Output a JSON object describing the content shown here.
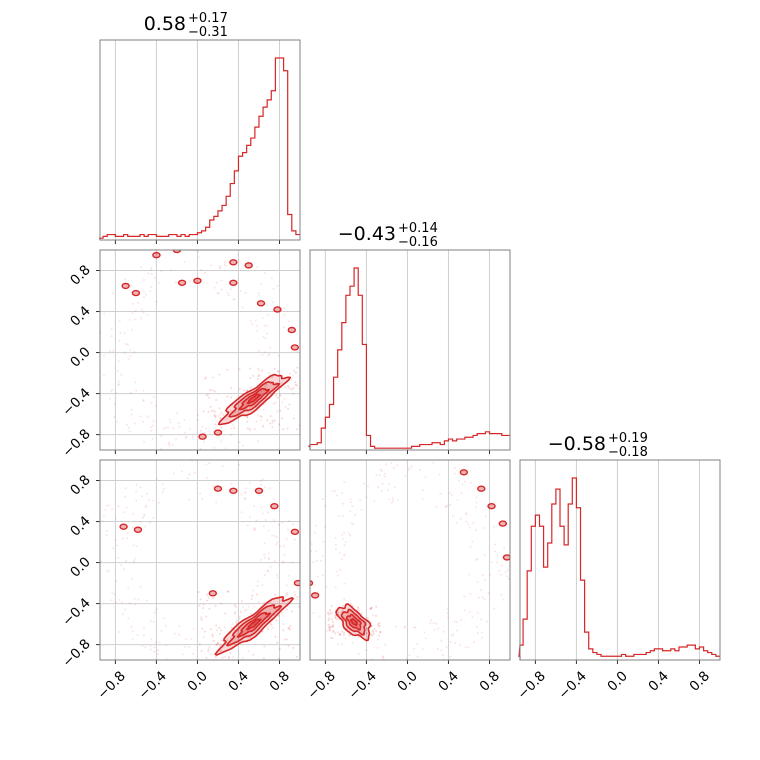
{
  "chart_data": {
    "type": "corner",
    "color": "#d62728",
    "grid": true,
    "parameters": [
      {
        "title_value": "0.58",
        "title_plus": "+0.17",
        "title_minus": "−0.31",
        "hist_x": [
          -0.98,
          -0.94,
          -0.9,
          -0.86,
          -0.82,
          -0.78,
          -0.74,
          -0.7,
          -0.66,
          -0.62,
          -0.58,
          -0.54,
          -0.5,
          -0.46,
          -0.42,
          -0.38,
          -0.34,
          -0.3,
          -0.26,
          -0.22,
          -0.18,
          -0.14,
          -0.1,
          -0.06,
          -0.02,
          0.02,
          0.06,
          0.1,
          0.14,
          0.18,
          0.22,
          0.26,
          0.3,
          0.34,
          0.38,
          0.42,
          0.46,
          0.5,
          0.54,
          0.58,
          0.62,
          0.66,
          0.7,
          0.74,
          0.78,
          0.82,
          0.86,
          0.9,
          0.94,
          0.98
        ],
        "hist_values": [
          1,
          1,
          2,
          3,
          3,
          2,
          2,
          3,
          2,
          2,
          2,
          3,
          2,
          3,
          3,
          2,
          2,
          2,
          3,
          3,
          2,
          3,
          2,
          3,
          3,
          4,
          5,
          7,
          11,
          13,
          16,
          19,
          24,
          31,
          38,
          46,
          48,
          52,
          56,
          62,
          68,
          73,
          77,
          82,
          100,
          100,
          93,
          14,
          5,
          3
        ]
      },
      {
        "title_value": "−0.43",
        "title_plus": "+0.14",
        "title_minus": "−0.16",
        "hist_x": [
          -0.98,
          -0.94,
          -0.9,
          -0.86,
          -0.82,
          -0.78,
          -0.74,
          -0.7,
          -0.66,
          -0.62,
          -0.58,
          -0.54,
          -0.5,
          -0.46,
          -0.42,
          -0.38,
          -0.34,
          -0.3,
          -0.26,
          -0.22,
          -0.18,
          -0.14,
          -0.1,
          -0.06,
          -0.02,
          0.02,
          0.06,
          0.1,
          0.14,
          0.18,
          0.22,
          0.26,
          0.3,
          0.34,
          0.38,
          0.42,
          0.46,
          0.5,
          0.54,
          0.58,
          0.62,
          0.66,
          0.7,
          0.74,
          0.78,
          0.82,
          0.86,
          0.9,
          0.94,
          0.98
        ],
        "hist_values": [
          2,
          3,
          3,
          4,
          12,
          18,
          25,
          40,
          55,
          70,
          85,
          90,
          100,
          85,
          58,
          8,
          2,
          1,
          1,
          1,
          1,
          1,
          1,
          1,
          1,
          1,
          2,
          2,
          3,
          3,
          3,
          4,
          4,
          3,
          5,
          6,
          5,
          6,
          6,
          7,
          7,
          8,
          9,
          9,
          10,
          9,
          9,
          9,
          8,
          8
        ]
      },
      {
        "title_value": "−0.58",
        "title_plus": "+0.19",
        "title_minus": "−0.18",
        "hist_x": [
          -0.98,
          -0.94,
          -0.9,
          -0.86,
          -0.82,
          -0.78,
          -0.74,
          -0.7,
          -0.66,
          -0.62,
          -0.58,
          -0.54,
          -0.5,
          -0.46,
          -0.42,
          -0.38,
          -0.34,
          -0.3,
          -0.26,
          -0.22,
          -0.18,
          -0.14,
          -0.1,
          -0.06,
          -0.02,
          0.02,
          0.06,
          0.1,
          0.14,
          0.18,
          0.22,
          0.26,
          0.3,
          0.34,
          0.38,
          0.42,
          0.46,
          0.5,
          0.54,
          0.58,
          0.62,
          0.66,
          0.7,
          0.74,
          0.78,
          0.82,
          0.86,
          0.9,
          0.94,
          0.98
        ],
        "hist_values": [
          2,
          8,
          22,
          48,
          72,
          78,
          72,
          50,
          63,
          84,
          92,
          72,
          62,
          84,
          98,
          82,
          43,
          15,
          6,
          4,
          3,
          2,
          2,
          2,
          2,
          2,
          3,
          2,
          2,
          3,
          3,
          3,
          4,
          5,
          6,
          6,
          5,
          5,
          6,
          5,
          7,
          7,
          8,
          8,
          6,
          7,
          5,
          4,
          3,
          2
        ]
      }
    ],
    "x_ticks": [
      -0.8,
      -0.4,
      0.0,
      0.4,
      0.8
    ],
    "x_tick_labels": [
      "−0.8",
      "−0.4",
      "0.0",
      "0.4",
      "0.8"
    ],
    "y_ticks": [
      -0.8,
      -0.4,
      0.0,
      0.4,
      0.8
    ],
    "y_tick_labels": [
      "−0.8",
      "−0.4",
      "0.0",
      "0.4",
      "0.8"
    ],
    "xlim": [
      -0.95,
      1.0
    ],
    "ylim": [
      -0.95,
      1.0
    ],
    "contours": {
      "p1_p0": {
        "cx": 0.55,
        "cy": -0.45,
        "rx": 0.38,
        "ry": 0.09,
        "angle_deg": 36,
        "islands": [
          [
            -0.7,
            0.65
          ],
          [
            -0.6,
            0.58
          ],
          [
            -0.4,
            0.95
          ],
          [
            -0.2,
            1.0
          ],
          [
            -0.15,
            0.68
          ],
          [
            0.0,
            0.7
          ],
          [
            0.35,
            0.68
          ],
          [
            0.35,
            0.88
          ],
          [
            0.5,
            0.85
          ],
          [
            0.62,
            0.48
          ],
          [
            0.78,
            0.42
          ],
          [
            0.92,
            0.22
          ],
          [
            0.95,
            0.05
          ],
          [
            0.05,
            -0.82
          ],
          [
            0.2,
            -0.78
          ]
        ]
      },
      "p2_p0": {
        "cx": 0.55,
        "cy": -0.6,
        "rx": 0.42,
        "ry": 0.09,
        "angle_deg": 38,
        "islands": [
          [
            -0.72,
            0.35
          ],
          [
            -0.58,
            0.32
          ],
          [
            0.2,
            0.72
          ],
          [
            0.35,
            0.7
          ],
          [
            0.6,
            0.7
          ],
          [
            0.75,
            0.55
          ],
          [
            0.95,
            0.3
          ],
          [
            0.98,
            -0.2
          ],
          [
            0.15,
            -0.3
          ]
        ]
      },
      "p2_p1": {
        "cx": -0.52,
        "cy": -0.58,
        "rx": 0.2,
        "ry": 0.1,
        "angle_deg": -45,
        "islands": [
          [
            -0.96,
            -0.2
          ],
          [
            -0.9,
            -0.32
          ],
          [
            0.55,
            0.88
          ],
          [
            0.72,
            0.72
          ],
          [
            0.82,
            0.55
          ],
          [
            0.93,
            0.38
          ],
          [
            0.97,
            0.05
          ]
        ]
      }
    }
  }
}
